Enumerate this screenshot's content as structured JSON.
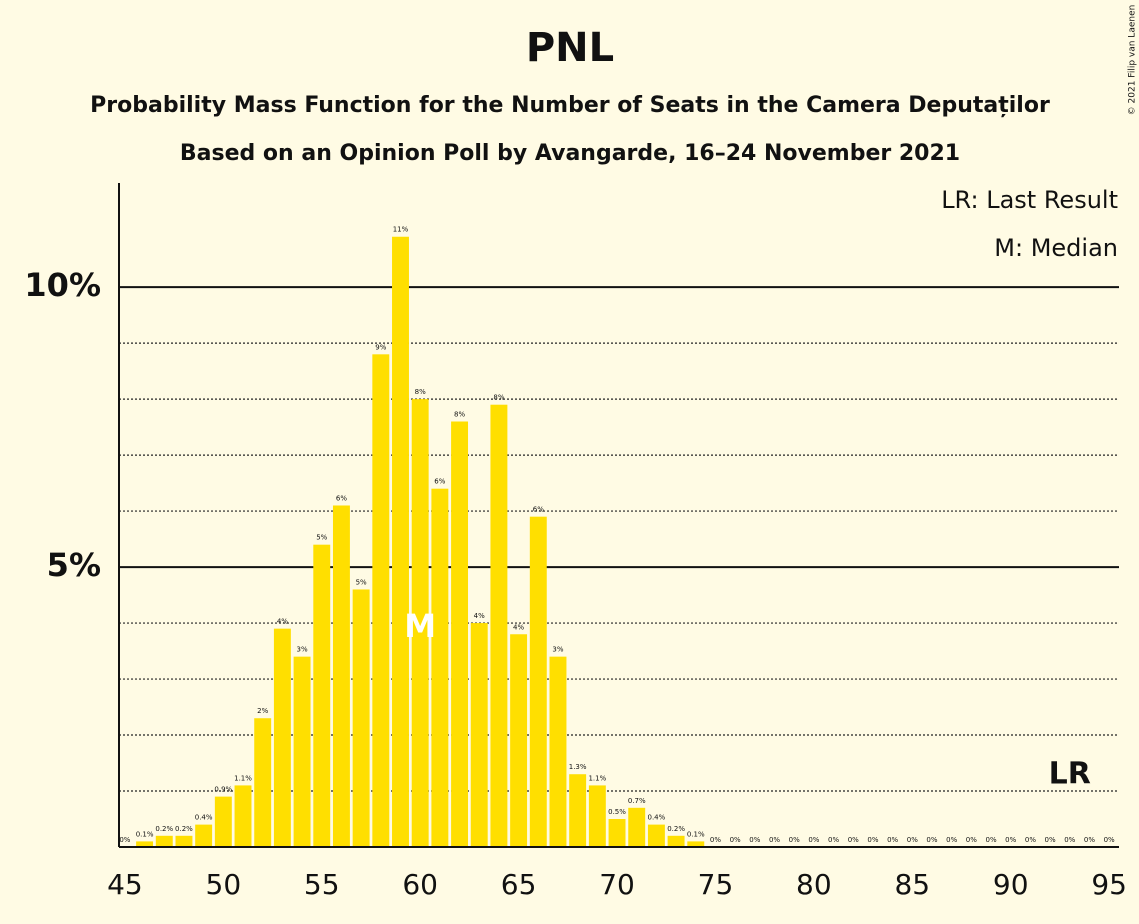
{
  "chart_data": {
    "type": "bar",
    "title": "PNL",
    "subtitle": [
      "Probability Mass Function for the Number of Seats in the Camera Deputaților",
      "Based on an Opinion Poll by Avangarde, 16–24 November 2021"
    ],
    "copyright": "© 2021 Filip van Laenen",
    "legend": [
      "LR: Last Result",
      "M: Median"
    ],
    "color": "#ffdf00",
    "x": [
      45,
      46,
      47,
      48,
      49,
      50,
      51,
      52,
      53,
      54,
      55,
      56,
      57,
      58,
      59,
      60,
      61,
      62,
      63,
      64,
      65,
      66,
      67,
      68,
      69,
      70,
      71,
      72,
      73,
      74,
      75,
      76,
      77,
      78,
      79,
      80,
      81,
      82,
      83,
      84,
      85,
      86,
      87,
      88,
      89,
      90,
      91,
      92,
      93,
      94,
      95
    ],
    "values": [
      0,
      0.1,
      0.2,
      0.2,
      0.4,
      0.9,
      1.1,
      2.3,
      3.9,
      3.4,
      5.4,
      6.1,
      4.6,
      8.8,
      10.9,
      8.0,
      6.4,
      7.6,
      4.0,
      7.9,
      3.8,
      5.9,
      3.4,
      1.3,
      1.1,
      0.5,
      0.7,
      0.4,
      0.2,
      0.1,
      0,
      0,
      0,
      0,
      0,
      0,
      0,
      0,
      0,
      0,
      0,
      0,
      0,
      0,
      0,
      0,
      0,
      0,
      0,
      0,
      0
    ],
    "value_labels": [
      "0%",
      "0.1%",
      "0.2%",
      "0.2%",
      "0.4%",
      "0.9%",
      "1.1%",
      "2%",
      "4%",
      "3%",
      "5%",
      "6%",
      "5%",
      "9%",
      "11%",
      "8%",
      "6%",
      "8%",
      "4%",
      "8%",
      "4%",
      "6%",
      "3%",
      "1.3%",
      "1.1%",
      "0.5%",
      "0.7%",
      "0.4%",
      "0.2%",
      "0.1%",
      "0%",
      "0%",
      "0%",
      "0%",
      "0%",
      "0%",
      "0%",
      "0%",
      "0%",
      "0%",
      "0%",
      "0%",
      "0%",
      "0%",
      "0%",
      "0%",
      "0%",
      "0%",
      "0%",
      "0%",
      "0%"
    ],
    "median": {
      "label": "M",
      "x": 60
    },
    "last_result": {
      "label": "LR",
      "x": 93
    },
    "xlim": [
      44.7,
      95.5
    ],
    "xticks": [
      45,
      50,
      55,
      60,
      65,
      70,
      75,
      80,
      85,
      90,
      95
    ],
    "ylim": [
      0,
      11.86
    ],
    "yticks": [
      {
        "value": 5,
        "label": "5%"
      },
      {
        "value": 10,
        "label": "10%"
      }
    ],
    "minor_yticks": [
      1,
      2,
      3,
      4,
      6,
      7,
      8,
      9
    ]
  }
}
